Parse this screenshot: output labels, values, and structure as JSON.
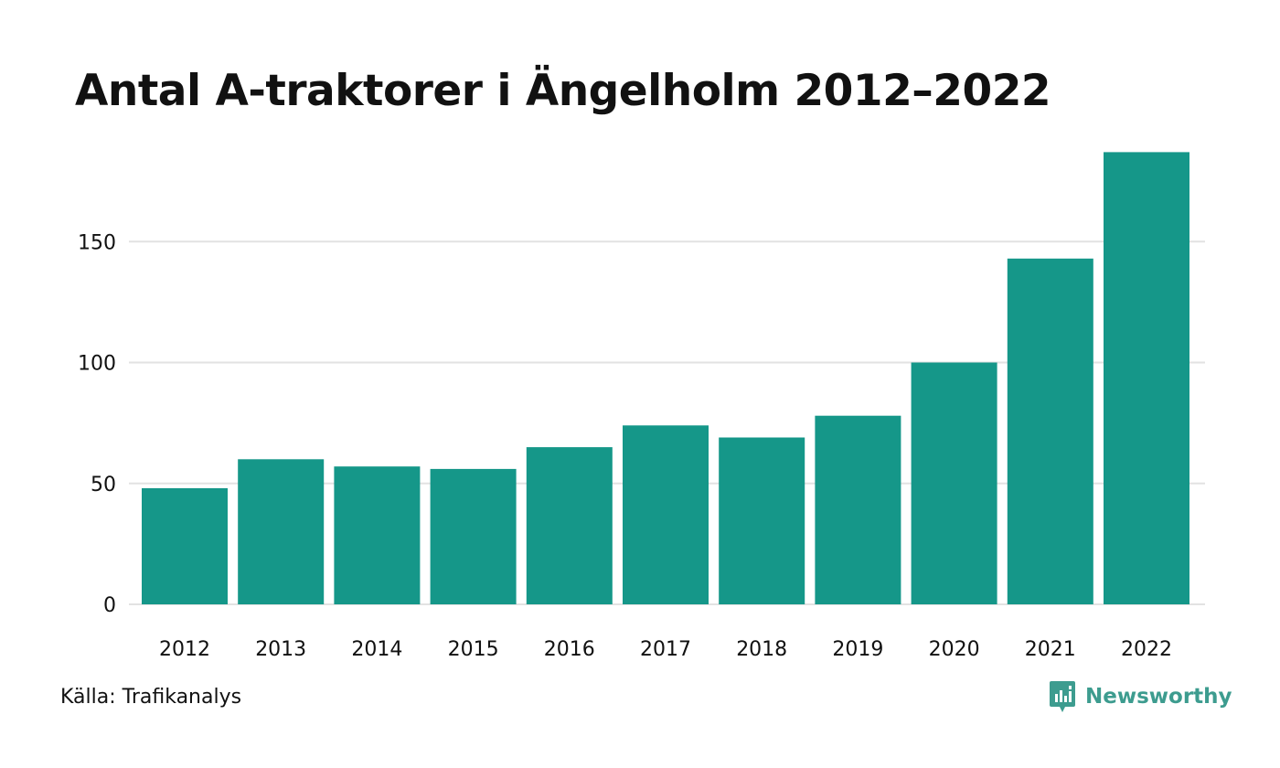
{
  "title": "Antal A-traktorer i Ängelholm 2012–2022",
  "source": "Källa: Trafikanalys",
  "brand": {
    "name": "Newsworthy",
    "icon": "newsworthy-logo-icon",
    "color": "#3d9c8f"
  },
  "colors": {
    "bar": "#159789",
    "grid": "#e2e2e2",
    "text": "#111111"
  },
  "chart_data": {
    "type": "bar",
    "categories": [
      "2012",
      "2013",
      "2014",
      "2015",
      "2016",
      "2017",
      "2018",
      "2019",
      "2020",
      "2021",
      "2022"
    ],
    "values": [
      48,
      60,
      57,
      56,
      65,
      74,
      69,
      78,
      100,
      143,
      187
    ],
    "yticks": [
      0,
      50,
      100,
      150
    ],
    "ylim": [
      0,
      187
    ],
    "grid": true,
    "legend": "none",
    "xlabel": "",
    "ylabel": ""
  }
}
